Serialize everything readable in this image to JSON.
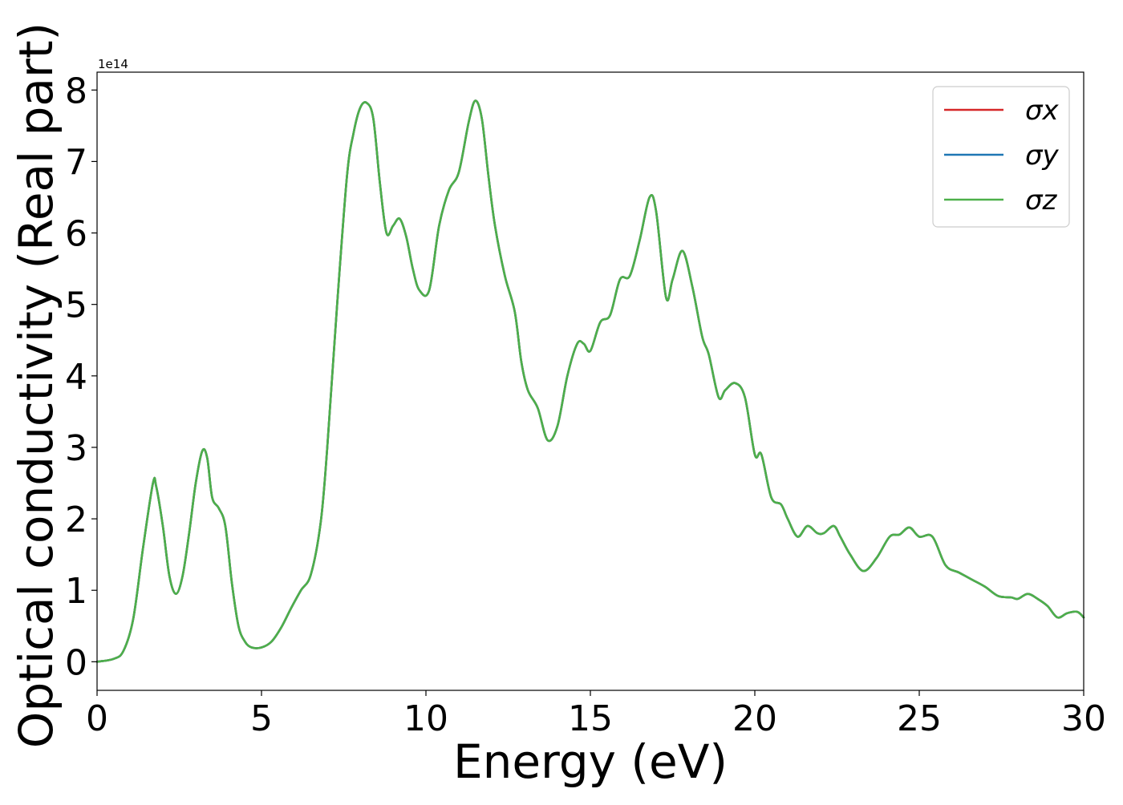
{
  "chart_data": {
    "type": "line",
    "title": "",
    "xlabel": "Energy (eV)",
    "ylabel": "Optical conductivity (Real part)",
    "offset_text": "1e14",
    "xlim": [
      0,
      30
    ],
    "ylim": [
      -0.4,
      8.25
    ],
    "x_ticks": [
      0,
      5,
      10,
      15,
      20,
      25,
      30
    ],
    "y_ticks": [
      0,
      1,
      2,
      3,
      4,
      5,
      6,
      7,
      8
    ],
    "grid": false,
    "legend_position": "top-right",
    "x": [
      0,
      0.5,
      0.8,
      1.1,
      1.4,
      1.7,
      1.8,
      2.0,
      2.2,
      2.4,
      2.6,
      2.8,
      3.0,
      3.2,
      3.35,
      3.5,
      3.7,
      3.9,
      4.1,
      4.3,
      4.5,
      4.7,
      5.0,
      5.3,
      5.6,
      5.9,
      6.2,
      6.5,
      6.8,
      7.0,
      7.3,
      7.6,
      7.8,
      8.0,
      8.2,
      8.4,
      8.6,
      8.8,
      9.0,
      9.2,
      9.4,
      9.6,
      9.8,
      10.1,
      10.4,
      10.7,
      11.0,
      11.3,
      11.5,
      11.7,
      11.9,
      12.1,
      12.4,
      12.7,
      12.9,
      13.1,
      13.4,
      13.7,
      14.0,
      14.3,
      14.6,
      14.8,
      15.0,
      15.3,
      15.6,
      15.9,
      16.2,
      16.5,
      16.8,
      17.0,
      17.3,
      17.5,
      17.8,
      18.1,
      18.4,
      18.6,
      18.9,
      19.1,
      19.4,
      19.7,
      20.0,
      20.2,
      20.5,
      20.8,
      21.0,
      21.3,
      21.6,
      21.9,
      22.1,
      22.4,
      22.6,
      22.9,
      23.3,
      23.7,
      24.1,
      24.4,
      24.7,
      25.0,
      25.4,
      25.8,
      26.2,
      26.6,
      27.0,
      27.4,
      27.8,
      28.0,
      28.3,
      28.6,
      28.9,
      29.2,
      29.5,
      29.8,
      30.0
    ],
    "series": [
      {
        "name": "σx",
        "color": "#d62728",
        "values": [
          0.0,
          0.04,
          0.15,
          0.6,
          1.6,
          2.5,
          2.45,
          1.9,
          1.2,
          0.95,
          1.2,
          1.8,
          2.5,
          2.95,
          2.85,
          2.3,
          2.15,
          1.9,
          1.1,
          0.5,
          0.28,
          0.2,
          0.2,
          0.28,
          0.48,
          0.75,
          1.0,
          1.22,
          1.95,
          3.0,
          5.0,
          6.8,
          7.4,
          7.75,
          7.82,
          7.6,
          6.7,
          6.0,
          6.1,
          6.2,
          5.95,
          5.5,
          5.2,
          5.2,
          6.1,
          6.6,
          6.85,
          7.55,
          7.85,
          7.6,
          6.8,
          6.1,
          5.4,
          4.9,
          4.2,
          3.8,
          3.55,
          3.1,
          3.3,
          4.0,
          4.45,
          4.45,
          4.35,
          4.75,
          4.85,
          5.35,
          5.4,
          5.9,
          6.5,
          6.3,
          5.1,
          5.35,
          5.75,
          5.25,
          4.55,
          4.3,
          3.7,
          3.8,
          3.9,
          3.7,
          2.9,
          2.9,
          2.3,
          2.2,
          2.0,
          1.75,
          1.9,
          1.8,
          1.8,
          1.9,
          1.75,
          1.5,
          1.27,
          1.45,
          1.75,
          1.78,
          1.88,
          1.75,
          1.75,
          1.35,
          1.25,
          1.15,
          1.05,
          0.92,
          0.9,
          0.88,
          0.95,
          0.88,
          0.78,
          0.62,
          0.68,
          0.7,
          0.62
        ]
      },
      {
        "name": "σy",
        "color": "#1f77b4",
        "values": [
          0.0,
          0.04,
          0.15,
          0.6,
          1.6,
          2.5,
          2.45,
          1.9,
          1.2,
          0.95,
          1.2,
          1.8,
          2.5,
          2.95,
          2.85,
          2.3,
          2.15,
          1.9,
          1.1,
          0.5,
          0.28,
          0.2,
          0.2,
          0.28,
          0.48,
          0.75,
          1.0,
          1.22,
          1.95,
          3.0,
          5.0,
          6.8,
          7.4,
          7.75,
          7.82,
          7.6,
          6.7,
          6.0,
          6.1,
          6.2,
          5.95,
          5.5,
          5.2,
          5.2,
          6.1,
          6.6,
          6.85,
          7.55,
          7.85,
          7.6,
          6.8,
          6.1,
          5.4,
          4.9,
          4.2,
          3.8,
          3.55,
          3.1,
          3.3,
          4.0,
          4.45,
          4.45,
          4.35,
          4.75,
          4.85,
          5.35,
          5.4,
          5.9,
          6.5,
          6.3,
          5.1,
          5.35,
          5.75,
          5.25,
          4.55,
          4.3,
          3.7,
          3.8,
          3.9,
          3.7,
          2.9,
          2.9,
          2.3,
          2.2,
          2.0,
          1.75,
          1.9,
          1.8,
          1.8,
          1.9,
          1.75,
          1.5,
          1.27,
          1.45,
          1.75,
          1.78,
          1.88,
          1.75,
          1.75,
          1.35,
          1.25,
          1.15,
          1.05,
          0.92,
          0.9,
          0.88,
          0.95,
          0.88,
          0.78,
          0.62,
          0.68,
          0.7,
          0.62
        ]
      },
      {
        "name": "σz",
        "color": "#4daf4a",
        "values": [
          0.0,
          0.04,
          0.15,
          0.6,
          1.6,
          2.5,
          2.45,
          1.9,
          1.2,
          0.95,
          1.2,
          1.8,
          2.5,
          2.95,
          2.85,
          2.3,
          2.15,
          1.9,
          1.1,
          0.5,
          0.28,
          0.2,
          0.2,
          0.28,
          0.48,
          0.75,
          1.0,
          1.22,
          1.95,
          3.0,
          5.0,
          6.8,
          7.4,
          7.75,
          7.82,
          7.6,
          6.7,
          6.0,
          6.1,
          6.2,
          5.95,
          5.5,
          5.2,
          5.2,
          6.1,
          6.6,
          6.85,
          7.55,
          7.85,
          7.6,
          6.8,
          6.1,
          5.4,
          4.9,
          4.2,
          3.8,
          3.55,
          3.1,
          3.3,
          4.0,
          4.45,
          4.45,
          4.35,
          4.75,
          4.85,
          5.35,
          5.4,
          5.9,
          6.5,
          6.3,
          5.1,
          5.35,
          5.75,
          5.25,
          4.55,
          4.3,
          3.7,
          3.8,
          3.9,
          3.7,
          2.9,
          2.9,
          2.3,
          2.2,
          2.0,
          1.75,
          1.9,
          1.8,
          1.8,
          1.9,
          1.75,
          1.5,
          1.27,
          1.45,
          1.75,
          1.78,
          1.88,
          1.75,
          1.75,
          1.35,
          1.25,
          1.15,
          1.05,
          0.92,
          0.9,
          0.88,
          0.95,
          0.88,
          0.78,
          0.62,
          0.68,
          0.7,
          0.62
        ]
      }
    ]
  }
}
